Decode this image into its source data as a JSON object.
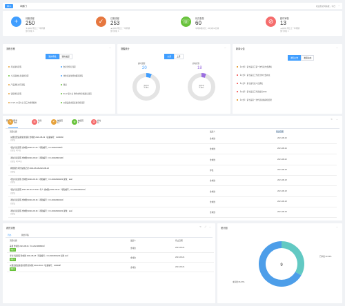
{
  "tabs": [
    {
      "label": "本人"
    },
    {
      "label": "本部门"
    }
  ],
  "user_info": "欢迎您访问系统，今日",
  "stats": [
    {
      "label": "待審流程",
      "value": "250",
      "sub1": "▼100% 环比上一年同期",
      "sub2": "部门排名 1",
      "color": "#409eff",
      "icon": "+"
    },
    {
      "label": "已審流程",
      "value": "253",
      "sub1": "▲100% 环比上一年同期",
      "sub2": "部门排名 1",
      "color": "#e6773f",
      "icon": "✓"
    },
    {
      "label": "待办数量",
      "value": "60",
      "sub1": "平均审核时长：26小时11分钟",
      "sub2": "",
      "color": "#67c23a",
      "icon": "☏"
    },
    {
      "label": "超时审核",
      "value": "13",
      "sub1": "▲100% 环比上一年同期",
      "sub2": "部门排名 1",
      "color": "#f56c6c",
      "icon": "⊘"
    }
  ],
  "process": {
    "title": "流程日程",
    "tabs": [
      "我的审批",
      "我的发起"
    ],
    "items": [
      {
        "text": "考试试卷流程",
        "color": "#e6a23c"
      },
      {
        "text": "会议室预订流程",
        "color": "#409eff"
      },
      {
        "text": "人员基础信息变更流程",
        "color": "#67c23a"
      },
      {
        "text": "非会议发生费用报销流程",
        "color": "#409eff"
      },
      {
        "text": "产品销售合同流程",
        "color": "#e6a23c"
      },
      {
        "text": "测试",
        "color": "#67c23a"
      },
      {
        "text": "请假申请流程",
        "color": "#e6a23c"
      },
      {
        "text": "PI-07 第七日 附件文件审核确认流程",
        "color": "#67c23a"
      },
      {
        "text": "KYZT-14 第七日 第三方检测费用",
        "color": "#e6a23c"
      },
      {
        "text": "仪器设备出借变更审核流程",
        "color": "#67c23a"
      }
    ]
  },
  "remind": {
    "title": "提醒统计",
    "tabs": [
      "全部",
      "上月"
    ],
    "left": {
      "label": "超时流程",
      "count": "20",
      "pct_label": "超时率",
      "pct": "6.45%",
      "pct_value": 6.45
    },
    "right": {
      "label": "超时任务",
      "count": "18",
      "pct_label": "超时率",
      "pct": "5.49%",
      "pct_value": 5.49
    }
  },
  "notice": {
    "title": "新闻公告",
    "tabs": [
      "通知公告",
      "发展动态"
    ],
    "items": [
      "【公告】 第七届员工第一次代表大会通知",
      "【公告】 第七届员工代表全体大会补充",
      "【公告】 第七届代表人员通知",
      "【公告】 第七届员工代表会议2021",
      "【公告】 第七届第一次代表资格审核结果"
    ]
  },
  "todo": {
    "title": "待办中心",
    "mini": [
      {
        "label": "待审",
        "value": "250",
        "color": "#e6a23c",
        "icon": "✎"
      },
      {
        "label": "待阅",
        "value": "3",
        "color": "#f56c6c",
        "icon": "☰"
      },
      {
        "label": "被退回",
        "value": "14",
        "color": "#e6a23c",
        "icon": "↶"
      },
      {
        "label": "被驳回",
        "value": "5",
        "color": "#67c23a",
        "icon": "⊗"
      },
      {
        "label": "超时",
        "value": "11",
        "color": "#f56c6c",
        "icon": "⏱"
      }
    ],
    "headers": {
      "title": "流程标题",
      "person": "发起人",
      "date": "到达日期"
    },
    "rows": [
      {
        "title": "仪器变更设备使用流程 金域欣 2021-08-23（设备编号：G00029）",
        "sub": "已提交",
        "person": "金域欣",
        "date": "2021-08-23"
      },
      {
        "title": "考生考试流程 金域欣 2021-07-20（考勤编号：KJ-2021070009）",
        "sub": "已提交 1月1日",
        "person": "金域欣",
        "date": "2021-08-24"
      },
      {
        "title": "考生考试流程 金域欣 2021-08-02（考勤编号：KJ-20210802100）",
        "sub": "已提交 2月21日",
        "person": "金域欣",
        "date": "2021-08-02"
      },
      {
        "title": "销售服务可控复核记录 2021-08-18-2022-08-20",
        "sub": "已提交",
        "person": "孙强",
        "date": "2021-08-18"
      },
      {
        "title": "考生考试流程 金域欣 2021-08-18（考勤编号：KJ-20210820223 试卷：test）",
        "sub": "已提交",
        "person": "金域欣",
        "date": "2021-08-18"
      },
      {
        "title": "考生考试流程 2021-08-18 17:05:47 考人 金域欣 2021-08-18（考勤编号：KJ-20210902221）",
        "sub": "已提交",
        "person": "金域欣",
        "date": "2021-08-18"
      },
      {
        "title": "考生考试流程 金域欣 2021-08-18（考勤编号：KJ-20210902222）",
        "sub": "已提交",
        "person": "金域欣",
        "date": "2021-08-18"
      },
      {
        "title": "考生考试流程 金域欣 2021-08-18（考勤编号：KJ-20210820223 试卷：test）",
        "sub": "已提交",
        "person": "金域欣",
        "date": "2021-08-18"
      }
    ]
  },
  "my": {
    "title": "我的流程",
    "tabs": [
      "待办",
      "我的草稿"
    ],
    "headers": {
      "title": "流程标题",
      "person": "发起人",
      "date": "停止日期"
    },
    "rows": [
      {
        "title": "差旅 金域欣 2021-08-01（KJ-20210808201）",
        "badge": "审批中",
        "person": "金域欣",
        "date": "2021-08-24"
      },
      {
        "title": "考生考试流程 金域欣 2021-08-18（考勤编号：KJ-20210902223 试卷 test）",
        "badge": "审批中",
        "person": "金域欣",
        "date": "2021-08-24"
      },
      {
        "title": "仪器变更设备使用流程 金域欣 2021-08-23（设备编号：G00029）",
        "badge": "审批中",
        "person": "金域欣",
        "date": "2021-08-24"
      }
    ]
  },
  "chart": {
    "title": "统计图",
    "chart_data": {
      "type": "pie",
      "center": "9",
      "slices": [
        {
          "name": "已审批",
          "pct": "33.33%",
          "value": 33.33,
          "color": "#62c9c3"
        },
        {
          "name": "未审批",
          "pct": "66.67%",
          "value": 66.67,
          "color": "#4d9ee9"
        }
      ]
    }
  }
}
